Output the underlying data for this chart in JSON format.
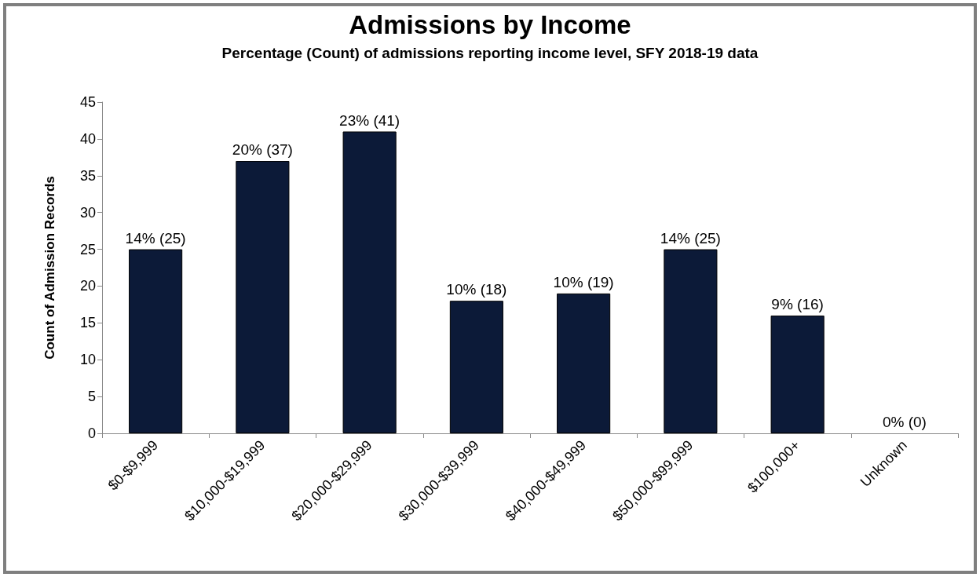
{
  "chart_data": {
    "type": "bar",
    "title": "Admissions by Income",
    "subtitle": "Percentage (Count) of admissions reporting income level, SFY 2018-19 data",
    "ylabel": "Count of Admission Records",
    "categories": [
      "$0-$9,999",
      "$10,000-$19,999",
      "$20,000-$29,999",
      "$30,000-$39,999",
      "$40,000-$49,999",
      "$50,000-$99,999",
      "$100,000+",
      "Unknown"
    ],
    "values": [
      25,
      37,
      41,
      18,
      19,
      25,
      16,
      0
    ],
    "value_labels": [
      "14% (25)",
      "20% (37)",
      "23% (41)",
      "10% (18)",
      "10% (19)",
      "14% (25)",
      "9% (16)",
      "0% (0)"
    ],
    "color": "#0c1a38",
    "ylim": [
      0,
      45
    ],
    "yticks": [
      0,
      5,
      10,
      15,
      20,
      25,
      30,
      35,
      40,
      45
    ],
    "grid": false
  }
}
